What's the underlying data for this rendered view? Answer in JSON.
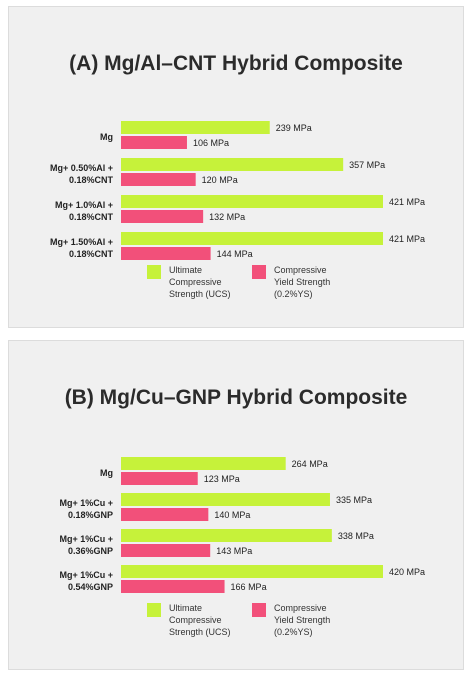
{
  "chart_data": [
    {
      "type": "bar",
      "title": "(A) Mg/Al–CNT Hybrid Composite",
      "categories": [
        [
          "Mg"
        ],
        [
          "Mg+ 0.50%Al +",
          "0.18%CNT"
        ],
        [
          "Mg+ 1.0%Al +",
          "0.18%CNT"
        ],
        [
          "Mg+ 1.50%Al +",
          "0.18%CNT"
        ]
      ],
      "series": [
        {
          "name": [
            "Ultimate",
            "Compressive",
            "Strength (UCS)"
          ],
          "values": [
            239,
            357,
            421,
            421
          ],
          "labels": [
            "239 MPa",
            "357 MPa",
            "421 MPa",
            "421 MPa"
          ],
          "color": "#c6f23a"
        },
        {
          "name": [
            "Compressive",
            "Yield Strength",
            "(0.2%YS)"
          ],
          "values": [
            106,
            120,
            132,
            144
          ],
          "labels": [
            "106 MPa",
            "120 MPa",
            "132 MPa",
            "144 MPa"
          ],
          "color": "#f2507a"
        }
      ],
      "xlim": [
        0,
        421
      ]
    },
    {
      "type": "bar",
      "title": "(B) Mg/Cu–GNP Hybrid Composite",
      "categories": [
        [
          "Mg"
        ],
        [
          "Mg+ 1%Cu +",
          "0.18%GNP"
        ],
        [
          "Mg+ 1%Cu +",
          "0.36%GNP"
        ],
        [
          "Mg+ 1%Cu +",
          "0.54%GNP"
        ]
      ],
      "series": [
        {
          "name": [
            "Ultimate",
            "Compressive",
            "Strength (UCS)"
          ],
          "values": [
            264,
            335,
            338,
            420
          ],
          "labels": [
            "264 MPa",
            "335 MPa",
            "338 MPa",
            "420 MPa"
          ],
          "color": "#c6f23a"
        },
        {
          "name": [
            "Compressive",
            "Yield Strength",
            "(0.2%YS)"
          ],
          "values": [
            123,
            140,
            143,
            166
          ],
          "labels": [
            "123 MPa",
            "140 MPa",
            "143 MPa",
            "166 MPa"
          ],
          "color": "#f2507a"
        }
      ],
      "xlim": [
        0,
        420
      ]
    }
  ]
}
